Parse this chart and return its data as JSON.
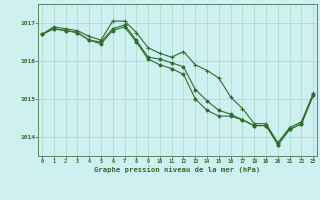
{
  "bg_color": "#cff0f0",
  "grid_color": "#aaddcc",
  "line_color": "#2d6e2d",
  "title": "Graphe pression niveau de la mer (hPa)",
  "yticks": [
    1014,
    1015,
    1016,
    1017
  ],
  "xticks": [
    0,
    1,
    2,
    3,
    4,
    5,
    6,
    7,
    8,
    9,
    10,
    11,
    12,
    13,
    14,
    15,
    16,
    17,
    18,
    19,
    20,
    21,
    22,
    23
  ],
  "ylim": [
    1013.5,
    1017.5
  ],
  "xlim": [
    -0.3,
    23.3
  ],
  "series1_x": [
    0,
    1,
    2,
    3,
    4,
    5,
    6,
    7,
    8,
    9,
    10,
    11,
    12,
    13,
    14,
    15,
    16,
    17,
    18,
    19,
    20,
    21,
    22,
    23
  ],
  "series1_y": [
    1016.7,
    1016.9,
    1016.85,
    1016.8,
    1016.65,
    1016.55,
    1017.05,
    1017.05,
    1016.75,
    1016.35,
    1016.2,
    1016.1,
    1016.25,
    1015.9,
    1015.75,
    1015.55,
    1015.05,
    1014.75,
    1014.35,
    1014.35,
    1013.85,
    1014.25,
    1014.4,
    1015.15
  ],
  "series2_x": [
    0,
    1,
    2,
    3,
    4,
    5,
    6,
    7,
    8,
    9,
    10,
    11,
    12,
    13,
    14,
    15,
    16,
    17,
    18,
    19,
    20,
    21,
    22,
    23
  ],
  "series2_y": [
    1016.7,
    1016.85,
    1016.8,
    1016.75,
    1016.55,
    1016.5,
    1016.85,
    1016.95,
    1016.55,
    1016.1,
    1016.05,
    1015.95,
    1015.85,
    1015.25,
    1014.95,
    1014.7,
    1014.6,
    1014.45,
    1014.3,
    1014.3,
    1013.8,
    1014.2,
    1014.35,
    1015.1
  ],
  "series3_x": [
    0,
    1,
    2,
    3,
    4,
    5,
    6,
    7,
    8,
    9,
    10,
    11,
    12,
    13,
    14,
    15,
    16,
    17,
    18,
    19,
    20,
    21,
    22,
    23
  ],
  "series3_y": [
    1016.7,
    1016.85,
    1016.8,
    1016.75,
    1016.55,
    1016.45,
    1016.8,
    1016.9,
    1016.5,
    1016.05,
    1015.9,
    1015.8,
    1015.65,
    1015.0,
    1014.7,
    1014.55,
    1014.55,
    1014.45,
    1014.3,
    1014.3,
    1013.8,
    1014.2,
    1014.35,
    1015.1
  ]
}
